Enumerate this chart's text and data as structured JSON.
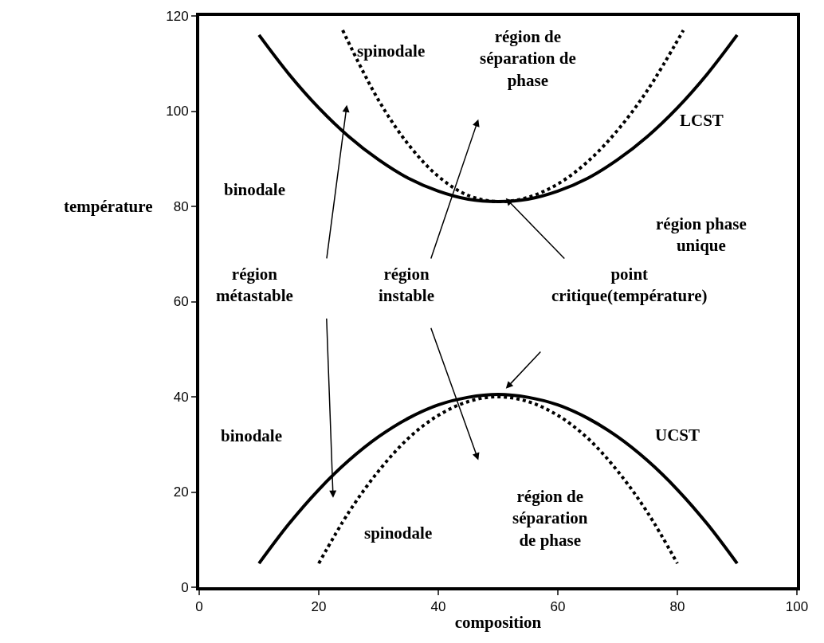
{
  "chart_data": {
    "type": "line",
    "xlabel": "composition",
    "ylabel": "température",
    "xlim": [
      0,
      100
    ],
    "ylim": [
      0,
      120
    ],
    "xticks": [
      0,
      20,
      40,
      60,
      80,
      100
    ],
    "yticks": [
      0,
      20,
      40,
      60,
      80,
      100,
      120
    ],
    "grid": false,
    "marker": "none",
    "series": [
      {
        "color": "#000000",
        "line_style": "solid",
        "x": [
          10,
          15,
          20,
          25,
          30,
          35,
          40,
          45,
          50,
          55,
          60,
          65,
          70,
          75,
          80,
          85,
          90
        ],
        "values": [
          116,
          107.8,
          100.7,
          94.7,
          89.8,
          85.9,
          83.2,
          81.5,
          81,
          81.5,
          83.2,
          85.9,
          89.8,
          94.7,
          100.7,
          107.8,
          116
        ]
      },
      {
        "color": "#000000",
        "line_style": "dotted",
        "x": [
          24,
          30,
          35,
          40,
          45,
          50,
          55,
          60,
          65,
          70,
          75,
          81
        ],
        "values": [
          117,
          102.3,
          93,
          86.3,
          82.3,
          81,
          81.9,
          84.7,
          89.4,
          96,
          104.4,
          117
        ]
      },
      {
        "color": "#000000",
        "line_style": "solid",
        "x": [
          10,
          15,
          20,
          25,
          30,
          35,
          40,
          45,
          50,
          55,
          60,
          65,
          70,
          75,
          80,
          85,
          90
        ],
        "values": [
          5,
          13.3,
          20.5,
          26.6,
          31.6,
          35.5,
          38.3,
          39.9,
          40.5,
          39.9,
          38.3,
          35.5,
          31.6,
          26.6,
          20.5,
          13.3,
          5
        ]
      },
      {
        "color": "#000000",
        "line_style": "dotted",
        "x": [
          20,
          25,
          30,
          35,
          40,
          45,
          50,
          55,
          60,
          65,
          70,
          75,
          80
        ],
        "values": [
          5,
          15.7,
          24.4,
          31.3,
          36.1,
          39,
          40,
          39,
          36.1,
          31.3,
          24.4,
          15.7,
          5
        ]
      }
    ],
    "annotations": [
      "spinodale",
      "région de\nséparation de\nphase",
      "LCST",
      "binodale",
      "région phase\nunique",
      "région\nmétastable",
      "région\ninstable",
      "point\ncritique(température)",
      "binodale",
      "UCST",
      "région de\nséparation\nde phase",
      "spinodale"
    ]
  }
}
